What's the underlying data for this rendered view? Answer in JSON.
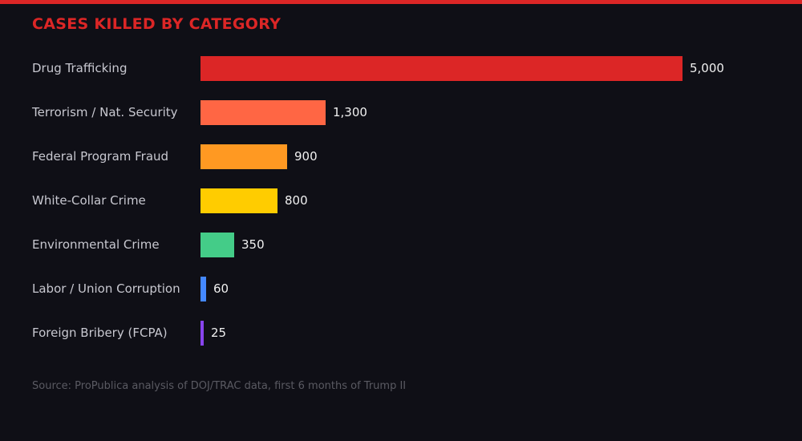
{
  "accent_color": "#dc2626",
  "chart_data": {
    "type": "bar",
    "orientation": "horizontal",
    "title": "CASES KILLED BY CATEGORY",
    "categories": [
      "Drug Trafficking",
      "Terrorism / Nat. Security",
      "Federal Program Fraud",
      "White-Collar Crime",
      "Environmental Crime",
      "Labor / Union Corruption",
      "Foreign Bribery (FCPA)"
    ],
    "values": [
      5000,
      1300,
      900,
      800,
      350,
      60,
      25
    ],
    "value_labels": [
      "5,000",
      "1,300",
      "900",
      "800",
      "350",
      "60",
      "25"
    ],
    "colors": [
      "#dc2626",
      "#ff6644",
      "#ff9922",
      "#ffcc00",
      "#44cc88",
      "#4488ff",
      "#8844ee"
    ],
    "xlim": [
      0,
      5000
    ],
    "grid": false,
    "source": "Source: ProPublica analysis of DOJ/TRAC data, first 6 months of Trump II"
  }
}
